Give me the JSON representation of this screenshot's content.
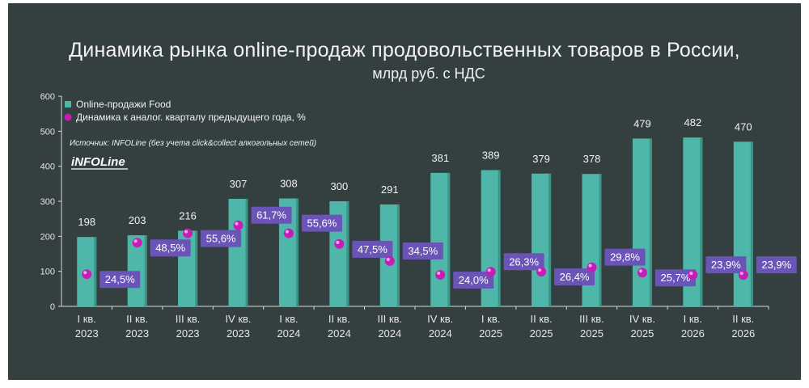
{
  "title": "Динамика рынка online-продаж продовольственных товаров в России,",
  "subtitle": "млрд руб. с НДС",
  "source": "Источник: INFOLine (без учета click&collect алкогольных сетей)",
  "logo": "iNFOLine",
  "colors": {
    "background": "#34403f",
    "bar": "#4fb7a9",
    "bar_edge": "#3c9388",
    "marker": "#c41fb5",
    "label_box": "#6a54b8",
    "text": "#f2f2f2"
  },
  "chart_data": {
    "type": "bar",
    "categories": [
      "I кв. 2023",
      "II кв. 2023",
      "III кв. 2023",
      "IV кв. 2023",
      "I кв. 2024",
      "II кв. 2024",
      "III кв. 2024",
      "IV кв. 2024",
      "I кв. 2025",
      "II кв. 2025",
      "III кв. 2025",
      "IV кв. 2025",
      "I кв. 2026",
      "II кв. 2026"
    ],
    "category_lines": [
      [
        "I кв.",
        "2023"
      ],
      [
        "II кв.",
        "2023"
      ],
      [
        "III кв.",
        "2023"
      ],
      [
        "IV кв.",
        "2023"
      ],
      [
        "I кв.",
        "2024"
      ],
      [
        "II кв.",
        "2024"
      ],
      [
        "III кв.",
        "2024"
      ],
      [
        "IV кв.",
        "2024"
      ],
      [
        "I кв.",
        "2025"
      ],
      [
        "II кв.",
        "2025"
      ],
      [
        "III кв.",
        "2025"
      ],
      [
        "IV кв.",
        "2025"
      ],
      [
        "I кв.",
        "2026"
      ],
      [
        "II кв.",
        "2026"
      ]
    ],
    "series": [
      {
        "name": "Online-продажи Food",
        "type": "bar",
        "values": [
          198,
          203,
          216,
          307,
          308,
          300,
          291,
          381,
          389,
          379,
          378,
          479,
          482,
          470
        ],
        "labels": [
          "198",
          "203",
          "216",
          "307",
          "308",
          "300",
          "291",
          "381",
          "389",
          "379",
          "378",
          "479",
          "482",
          "470"
        ]
      },
      {
        "name": "Динамика к аналог. кварталу предыдущего года, %",
        "type": "scatter",
        "values": [
          24.5,
          48.5,
          55.6,
          61.7,
          55.6,
          47.5,
          34.5,
          24.0,
          26.3,
          26.4,
          29.8,
          25.7,
          23.9,
          23.9
        ],
        "labels": [
          "24,5%",
          "48,5%",
          "55,6%",
          "61,7%",
          "55,6%",
          "47,5%",
          "34,5%",
          "24,0%",
          "26,3%",
          "26,4%",
          "29,8%",
          "25,7%",
          "23,9%",
          "23,9%"
        ],
        "label_side": [
          "right",
          "right",
          "right",
          "right",
          "right",
          "right",
          "right",
          "right",
          "right",
          "right",
          "right",
          "right",
          "right",
          "right"
        ],
        "label_pos": [
          "below",
          "below",
          "below",
          "above",
          "above",
          "below",
          "above",
          "below",
          "above",
          "below",
          "above",
          "below",
          "above",
          "above"
        ]
      }
    ],
    "y_ticks": [
      0,
      100,
      200,
      300,
      400,
      500,
      600
    ],
    "ylim": [
      0,
      600
    ],
    "pct_range": [
      0,
      160
    ],
    "grid": false,
    "legend": "top-left"
  }
}
